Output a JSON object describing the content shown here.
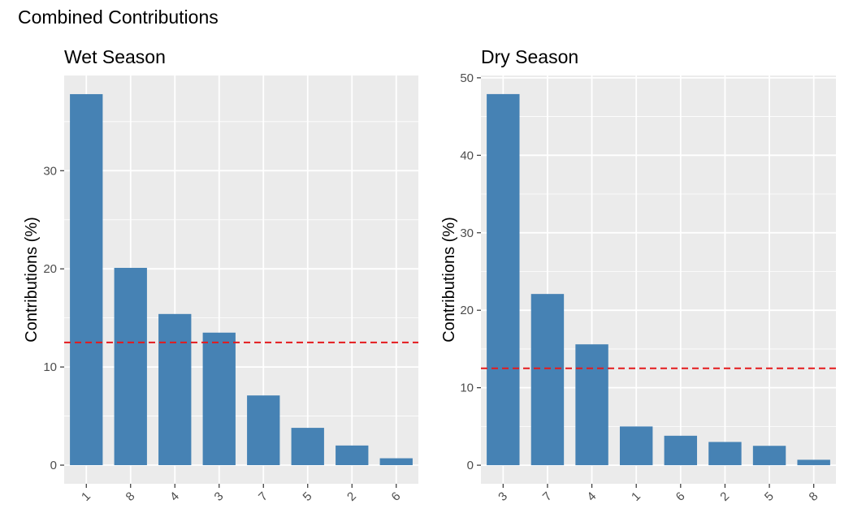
{
  "figure": {
    "title": "Combined Contributions"
  },
  "colors": {
    "bar": "#4682B4",
    "panel_bg": "#EBEBEB",
    "grid": "#FFFFFF",
    "reference_line": "#E41A1C",
    "text": "#000000",
    "tick": "#4D4D4D"
  },
  "chart_data": [
    {
      "type": "bar",
      "title": "Wet Season",
      "xlabel": "",
      "ylabel": "Contributions (%)",
      "categories": [
        "1",
        "8",
        "4",
        "3",
        "7",
        "5",
        "2",
        "6"
      ],
      "values": [
        37.8,
        20.1,
        15.4,
        13.5,
        7.1,
        3.8,
        2.0,
        0.7
      ],
      "ylim": [
        -1.9,
        39.7
      ],
      "yticks": [
        0,
        10,
        20,
        30
      ],
      "reference_line": {
        "y": 12.5,
        "style": "dashed"
      },
      "grid": true
    },
    {
      "type": "bar",
      "title": "Dry Season",
      "xlabel": "",
      "ylabel": "Contributions (%)",
      "categories": [
        "3",
        "7",
        "4",
        "1",
        "6",
        "2",
        "5",
        "8"
      ],
      "values": [
        47.9,
        22.1,
        15.6,
        5.0,
        3.8,
        3.0,
        2.5,
        0.7
      ],
      "ylim": [
        -2.4,
        50.3
      ],
      "yticks": [
        0,
        10,
        20,
        30,
        40,
        50
      ],
      "reference_line": {
        "y": 12.5,
        "style": "dashed"
      },
      "grid": true
    }
  ]
}
